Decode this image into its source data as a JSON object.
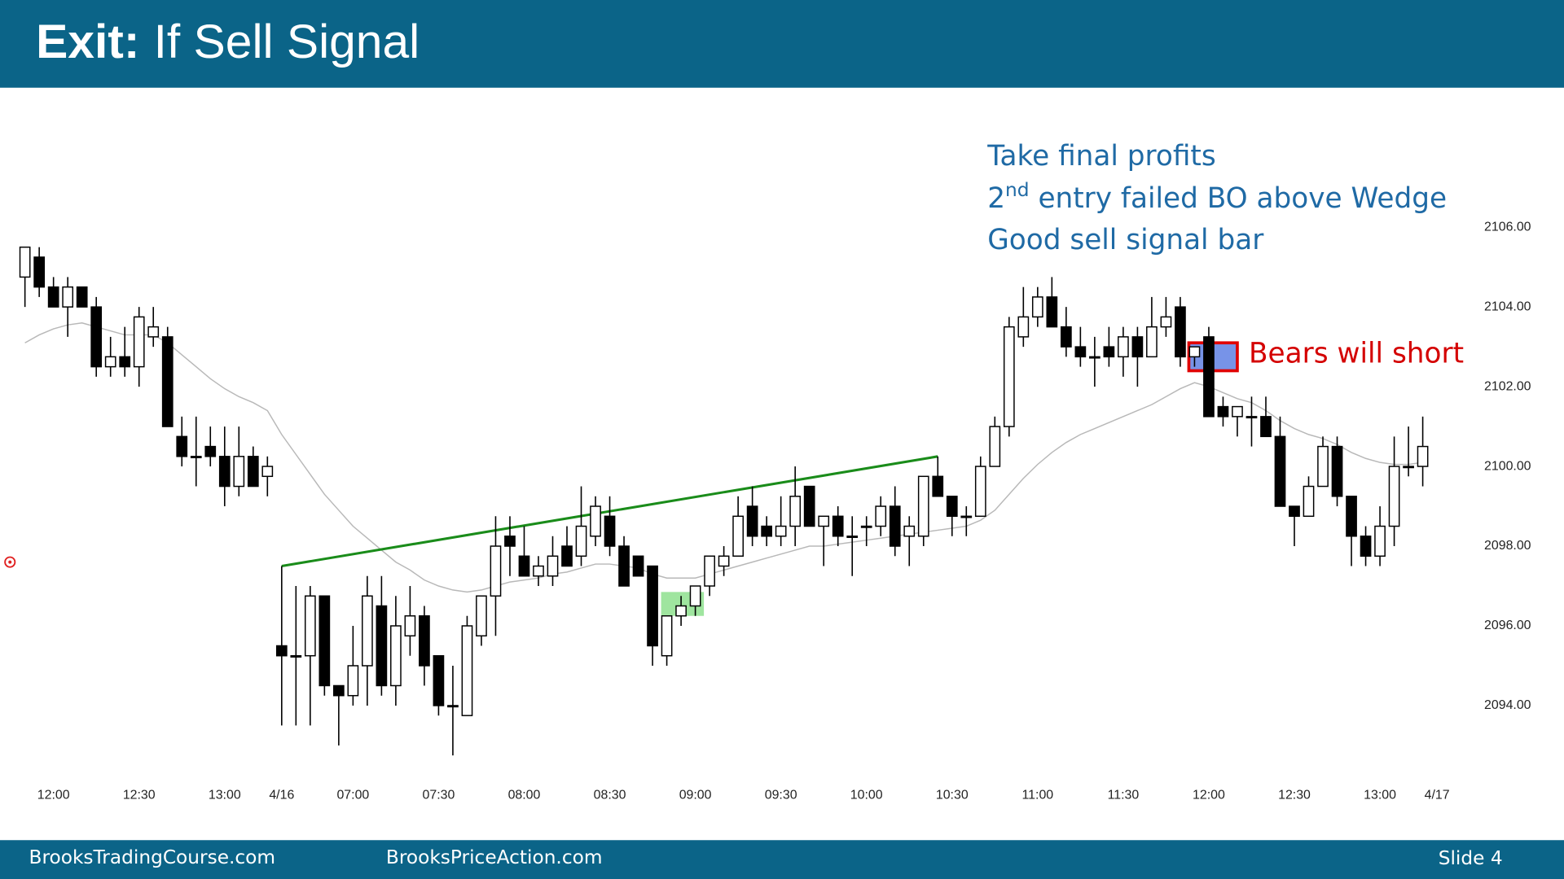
{
  "header": {
    "title_bold": "Exit:",
    "title": "If Sell Signal"
  },
  "chart_data": {
    "type": "candlestick",
    "open": [
      2104.75,
      2105.25,
      2104.5,
      2104,
      2104.5,
      2104,
      2102.5,
      2102.75,
      2102.5,
      2103.25,
      2103.25,
      2100.75,
      2100.25,
      2100.5,
      2100.25,
      2099.5,
      2100.25,
      2099.75,
      2095.5,
      2095.25,
      2095.25,
      2096.75,
      2094.5,
      2094.25,
      2095,
      2096.5,
      2094.5,
      2095.75,
      2096.25,
      2095.25,
      2094,
      2093.75,
      2095.75,
      2096.75,
      2098.25,
      2097.75,
      2097.25,
      2097.25,
      2098,
      2097.75,
      2098.25,
      2098.75,
      2098,
      2097.75,
      2097.5,
      2095.25,
      2096.25,
      2096.5,
      2097,
      2097.5,
      2097.75,
      2099,
      2098.5,
      2098.25,
      2098.5,
      2099.5,
      2098.5,
      2098.75,
      2098.25,
      2098.5,
      2098.5,
      2099,
      2098.25,
      2098.25,
      2099.75,
      2099.25,
      2098.75,
      2098.75,
      2100,
      2101,
      2103.25,
      2103.75,
      2104.25,
      2103.5,
      2103,
      2102.75,
      2103,
      2102.75,
      2103.25,
      2102.75,
      2103.5,
      2104,
      2102.75,
      2103.25,
      2101.5,
      2101.25,
      2101.25,
      2101.25,
      2100.75,
      2099,
      2098.75,
      2099.5,
      2100.5,
      2099.25,
      2098.25,
      2097.75,
      2098.5,
      2100,
      2100
    ],
    "high": [
      2105.5,
      2105.5,
      2104.75,
      2104.75,
      2104.5,
      2104.25,
      2103.25,
      2103.5,
      2104,
      2104,
      2103.5,
      2101.25,
      2101.25,
      2101,
      2101,
      2101,
      2100.5,
      2100.25,
      2097.5,
      2097,
      2097,
      2096.75,
      2094.5,
      2096,
      2097.25,
      2097.25,
      2096.75,
      2097,
      2096.5,
      2095.25,
      2095,
      2096.25,
      2096.75,
      2098.75,
      2098.75,
      2098.5,
      2097.75,
      2098.25,
      2098.5,
      2099.5,
      2099.25,
      2099.25,
      2098.25,
      2097.75,
      2097.5,
      2096.25,
      2096.75,
      2097,
      2097.75,
      2098,
      2099.25,
      2099.5,
      2098.75,
      2099.25,
      2100,
      2099.5,
      2098.75,
      2099,
      2098.75,
      2098.75,
      2099.25,
      2099.5,
      2098.75,
      2099.75,
      2100.25,
      2099.25,
      2099,
      2100.25,
      2101.25,
      2103.75,
      2104.5,
      2104.5,
      2104.75,
      2104,
      2103.5,
      2103.25,
      2103.5,
      2103.5,
      2103.5,
      2104.25,
      2104.25,
      2104.25,
      2103,
      2103.5,
      2101.75,
      2101.5,
      2101.75,
      2101.75,
      2101.25,
      2099,
      2099.75,
      2100.75,
      2100.75,
      2099.25,
      2098.5,
      2099,
      2100.75,
      2101,
      2101.25
    ],
    "low": [
      2104,
      2104.25,
      2104,
      2103.25,
      2104,
      2102.25,
      2102.25,
      2102.25,
      2102,
      2103,
      2101,
      2100,
      2099.5,
      2100,
      2099,
      2099.25,
      2099.5,
      2099.25,
      2093.5,
      2093.5,
      2093.5,
      2094.25,
      2093,
      2094,
      2094,
      2094.25,
      2094,
      2095.25,
      2094.5,
      2093.75,
      2092.75,
      2093.75,
      2095.5,
      2095.75,
      2097.25,
      2097.25,
      2097,
      2097,
      2097.5,
      2097.5,
      2098,
      2097.75,
      2097,
      2097.25,
      2095,
      2095,
      2096,
      2096.25,
      2096.75,
      2097.25,
      2097.75,
      2098,
      2098,
      2098,
      2098,
      2098.5,
      2097.5,
      2098,
      2097.25,
      2098,
      2098.25,
      2097.75,
      2097.5,
      2098,
      2099.25,
      2098.25,
      2098.25,
      2098.75,
      2100,
      2100.75,
      2103,
      2103.5,
      2103.5,
      2102.75,
      2102.5,
      2102,
      2102.5,
      2102.25,
      2102,
      2102.75,
      2103.25,
      2102.5,
      2102.5,
      2101.25,
      2101,
      2100.75,
      2100.5,
      2100.75,
      2099,
      2098,
      2098.75,
      2099.5,
      2099,
      2097.5,
      2097.5,
      2097.5,
      2098,
      2099.75,
      2099.5
    ],
    "close": [
      2105.5,
      2104.5,
      2104,
      2104.5,
      2104,
      2102.5,
      2102.75,
      2102.5,
      2103.75,
      2103.5,
      2101,
      2100.25,
      2100.25,
      2100.25,
      2099.5,
      2100.25,
      2099.5,
      2100,
      2095.25,
      2095.25,
      2096.75,
      2094.5,
      2094.25,
      2095,
      2096.75,
      2094.5,
      2096,
      2096.25,
      2095,
      2094,
      2094,
      2096,
      2096.75,
      2098,
      2098,
      2097.25,
      2097.5,
      2097.75,
      2097.5,
      2098.5,
      2099,
      2098,
      2097,
      2097.25,
      2095.5,
      2096.25,
      2096.5,
      2097,
      2097.75,
      2097.75,
      2098.75,
      2098.25,
      2098.25,
      2098.5,
      2099.25,
      2098.5,
      2098.75,
      2098.25,
      2098.25,
      2098.5,
      2099,
      2098,
      2098.5,
      2099.75,
      2099.25,
      2098.75,
      2098.75,
      2100,
      2101,
      2103.5,
      2103.75,
      2104.25,
      2103.5,
      2103,
      2102.75,
      2102.75,
      2102.75,
      2103.25,
      2102.75,
      2103.5,
      2103.75,
      2102.75,
      2103,
      2101.25,
      2101.25,
      2101.5,
      2101.25,
      2100.75,
      2099,
      2098.75,
      2099.5,
      2100.5,
      2099.25,
      2098.25,
      2097.75,
      2098.5,
      2100,
      2100,
      2100.5
    ],
    "up_color": "#ffffff",
    "down_color": "#000000",
    "moving_average": {
      "color": "#b8b8b8",
      "values": [
        2103.1,
        2103.3,
        2103.45,
        2103.55,
        2103.6,
        2103.5,
        2103.4,
        2103.3,
        2103.3,
        2103.3,
        2103.1,
        2102.8,
        2102.5,
        2102.2,
        2101.95,
        2101.75,
        2101.6,
        2101.4,
        2100.8,
        2100.3,
        2099.8,
        2099.3,
        2098.9,
        2098.5,
        2098.2,
        2097.9,
        2097.6,
        2097.4,
        2097.15,
        2097,
        2096.9,
        2096.85,
        2096.9,
        2097,
        2097.1,
        2097.15,
        2097.2,
        2097.3,
        2097.35,
        2097.45,
        2097.55,
        2097.55,
        2097.5,
        2097.45,
        2097.3,
        2097.2,
        2097.2,
        2097.2,
        2097.3,
        2097.4,
        2097.5,
        2097.6,
        2097.7,
        2097.8,
        2097.9,
        2098,
        2098,
        2098.05,
        2098.1,
        2098.15,
        2098.2,
        2098.25,
        2098.3,
        2098.35,
        2098.4,
        2098.45,
        2098.5,
        2098.65,
        2098.9,
        2099.3,
        2099.7,
        2100.05,
        2100.35,
        2100.6,
        2100.8,
        2100.95,
        2101.1,
        2101.25,
        2101.4,
        2101.55,
        2101.75,
        2101.95,
        2102.1,
        2102,
        2101.85,
        2101.7,
        2101.6,
        2101.4,
        2101.15,
        2100.95,
        2100.8,
        2100.7,
        2100.55,
        2100.35,
        2100.2,
        2100.1,
        2100.05,
        2100.05,
        2100.1
      ]
    },
    "trendline": {
      "x": [
        18,
        64
      ],
      "values": [
        2097.5,
        2100.25
      ],
      "color": "#1a8c1a"
    },
    "highlights": [
      {
        "x": [
          44.6,
          47.6
        ],
        "y": [
          2096.25,
          2096.85
        ],
        "color": "#7fdc7f"
      },
      {
        "x": [
          81.6,
          85
        ],
        "y": [
          2102.4,
          2103.1
        ],
        "color": "#4a6fe0",
        "border": "#e00000"
      }
    ],
    "xlim": [
      -1.75,
      101.4
    ],
    "ylim": [
      2092.2,
      2109.5
    ],
    "xticks": [
      {
        "value": 2,
        "label": "12:00"
      },
      {
        "value": 8,
        "label": "12:30"
      },
      {
        "value": 14,
        "label": "13:00"
      },
      {
        "value": 18,
        "label": "4/16"
      },
      {
        "value": 23,
        "label": "07:00"
      },
      {
        "value": 29,
        "label": "07:30"
      },
      {
        "value": 35,
        "label": "08:00"
      },
      {
        "value": 41,
        "label": "08:30"
      },
      {
        "value": 47,
        "label": "09:00"
      },
      {
        "value": 53,
        "label": "09:30"
      },
      {
        "value": 59,
        "label": "10:00"
      },
      {
        "value": 65,
        "label": "10:30"
      },
      {
        "value": 71,
        "label": "11:00"
      },
      {
        "value": 77,
        "label": "11:30"
      },
      {
        "value": 83,
        "label": "12:00"
      },
      {
        "value": 89,
        "label": "12:30"
      },
      {
        "value": 95,
        "label": "13:00"
      },
      {
        "value": 99,
        "label": "4/17"
      }
    ],
    "yticks": [
      {
        "value": 2094,
        "label": "2094.00"
      },
      {
        "value": 2096,
        "label": "2096.00"
      },
      {
        "value": 2098,
        "label": "2098.00"
      },
      {
        "value": 2100,
        "label": "2100.00"
      },
      {
        "value": 2102,
        "label": "2102.00"
      },
      {
        "value": 2104,
        "label": "2104.00"
      },
      {
        "value": 2106,
        "label": "2106.00"
      }
    ],
    "notes": {
      "color": "#1f6aa5",
      "line1": "Take final profits",
      "line2_num": "2",
      "line2_sup": "nd",
      "line2_rest": " entry failed BO above Wedge",
      "line3": "Good sell signal bar"
    },
    "signal_label": {
      "text": "Bears will short",
      "color": "#d40000"
    }
  },
  "footer": {
    "left": "BrooksTradingCourse.com",
    "middle": "BrooksPriceAction.com",
    "right": "Slide 4"
  }
}
